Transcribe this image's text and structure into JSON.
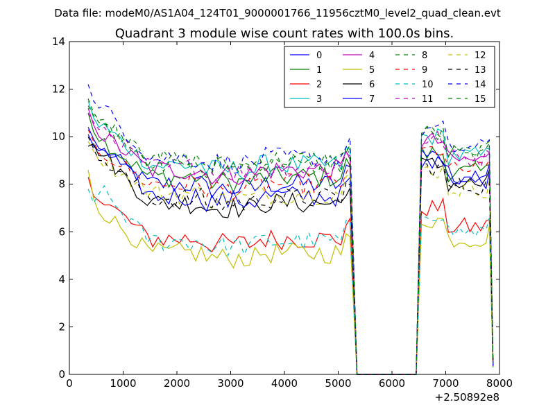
{
  "suptitle": "Data file: modeM0/AS1A04_124T01_9000001766_11956cztM0_level2_quad_clean.evt",
  "chart_data": {
    "type": "line",
    "title": "Quadrant 3 module wise count rates with 100.0s bins.",
    "xlabel": "",
    "ylabel": "",
    "x_offset_label": "+2.50892e8",
    "xlim": [
      0,
      8000
    ],
    "ylim": [
      0,
      14
    ],
    "x_ticks": [
      0,
      1000,
      2000,
      3000,
      4000,
      5000,
      6000,
      7000,
      8000
    ],
    "y_ticks": [
      0,
      2,
      4,
      6,
      8,
      10,
      12,
      14
    ],
    "grid": false,
    "legend_position": "top-right",
    "legend_columns": 4,
    "x": [
      350,
      450,
      550,
      650,
      750,
      850,
      950,
      1050,
      1150,
      1250,
      1350,
      1450,
      1550,
      1650,
      1750,
      1850,
      1950,
      2050,
      2150,
      2250,
      2350,
      2450,
      2550,
      2650,
      2750,
      2850,
      2950,
      3050,
      3150,
      3250,
      3350,
      3450,
      3550,
      3650,
      3750,
      3850,
      3950,
      4050,
      4150,
      4250,
      4350,
      4450,
      4550,
      4650,
      4750,
      4850,
      4950,
      5050,
      5150,
      5220,
      5350,
      6450,
      6550,
      6650,
      6750,
      6850,
      6950,
      7050,
      7150,
      7250,
      7350,
      7450,
      7550,
      7650,
      7750,
      7810,
      7880
    ],
    "series": [
      {
        "name": "0",
        "color": "#0000ff",
        "style": "solid",
        "gap_level": 8.0,
        "start": [
          10.1,
          9.6,
          9.4
        ],
        "end_level": 8.2
      },
      {
        "name": "1",
        "color": "#008000",
        "style": "solid",
        "gap_level": 8.3,
        "start": [
          11.0,
          10.2,
          9.8
        ],
        "end_level": 8.5
      },
      {
        "name": "2",
        "color": "#ff0000",
        "style": "solid",
        "gap_level": 5.7,
        "start": [
          8.3,
          7.5,
          7.3
        ],
        "end_level": 6.2
      },
      {
        "name": "3",
        "color": "#00bfbf",
        "style": "solid",
        "gap_level": 8.8,
        "start": [
          11.5,
          10.8,
          10.4
        ],
        "end_level": 9.2
      },
      {
        "name": "4",
        "color": "#bf00bf",
        "style": "solid",
        "gap_level": 8.6,
        "start": [
          11.2,
          10.5,
          10.0
        ],
        "end_level": 9.0
      },
      {
        "name": "5",
        "color": "#bfbf00",
        "style": "solid",
        "gap_level": 5.1,
        "start": [
          8.6,
          7.4,
          6.8
        ],
        "end_level": 5.7
      },
      {
        "name": "6",
        "color": "#000000",
        "style": "solid",
        "gap_level": 7.2,
        "start": [
          9.6,
          9.7,
          9.2
        ],
        "end_level": 8.0
      },
      {
        "name": "7",
        "color": "#0000ff",
        "style": "solid",
        "gap_level": 7.5,
        "start": [
          10.4,
          9.9,
          9.5
        ],
        "end_level": 8.4
      },
      {
        "name": "8",
        "color": "#008000",
        "style": "dashed",
        "gap_level": 9.0,
        "start": [
          11.6,
          11.0,
          10.7
        ],
        "end_level": 9.3
      },
      {
        "name": "9",
        "color": "#ff0000",
        "style": "dashed",
        "gap_level": 8.0,
        "start": [
          10.3,
          9.8,
          9.3
        ],
        "end_level": 8.6
      },
      {
        "name": "10",
        "color": "#00bfbf",
        "style": "dashed",
        "gap_level": 5.6,
        "start": [
          7.8,
          7.2,
          7.6
        ],
        "end_level": 6.0
      },
      {
        "name": "11",
        "color": "#bf00bf",
        "style": "dashed",
        "gap_level": 8.7,
        "start": [
          11.0,
          10.6,
          10.3
        ],
        "end_level": 9.1
      },
      {
        "name": "12",
        "color": "#bfbf00",
        "style": "dashed",
        "gap_level": 7.6,
        "start": [
          9.8,
          9.4,
          9.0
        ],
        "end_level": 7.8
      },
      {
        "name": "13",
        "color": "#000000",
        "style": "dashed",
        "gap_level": 7.4,
        "start": [
          10.0,
          9.5,
          9.0
        ],
        "end_level": 7.9
      },
      {
        "name": "14",
        "color": "#0000ff",
        "style": "dashed",
        "gap_level": 9.1,
        "start": [
          12.2,
          11.5,
          11.2
        ],
        "end_level": 9.5
      },
      {
        "name": "15",
        "color": "#008000",
        "style": "dashed",
        "gap_level": 8.9,
        "start": [
          11.3,
          10.9,
          10.6
        ],
        "end_level": 9.3
      }
    ]
  }
}
